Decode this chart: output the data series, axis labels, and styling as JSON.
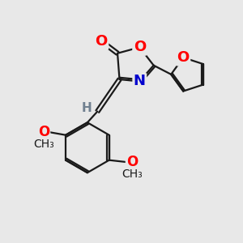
{
  "background_color": "#e8e8e8",
  "bond_color": "#1a1a1a",
  "atom_colors": {
    "O": "#ff0000",
    "N": "#0000cd",
    "H": "#708090"
  },
  "figsize": [
    3.0,
    3.0
  ],
  "dpi": 100
}
